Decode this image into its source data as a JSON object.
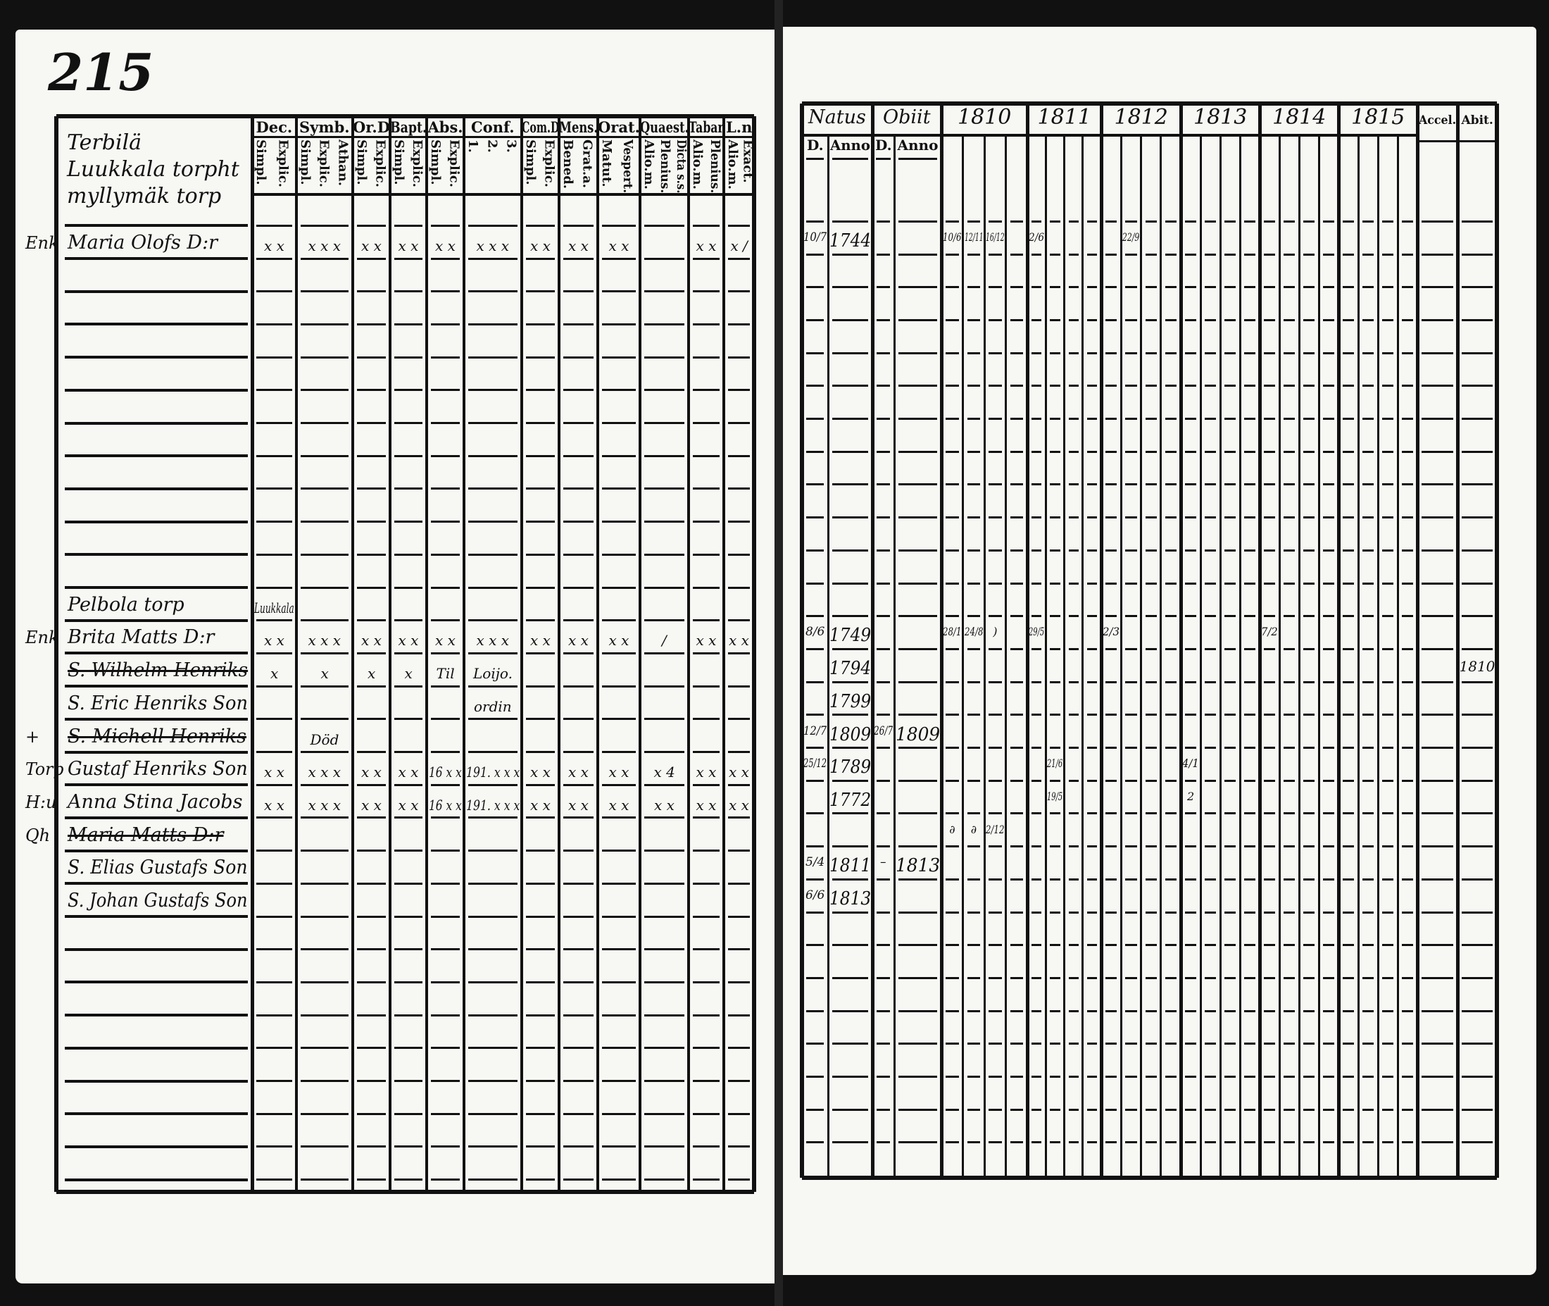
{
  "page_number": "215",
  "left": {
    "name_header": [
      "Terbilä",
      "Luukkala torpht",
      "myllymäk torp"
    ],
    "columns": [
      {
        "label": "Dec.",
        "sub": [
          "Explic.",
          "Simpl."
        ]
      },
      {
        "label": "Symb.",
        "sub": [
          "Athan.",
          "Explic.",
          "Simpl."
        ]
      },
      {
        "label": "Or.D",
        "sub": [
          "Explic.",
          "Simpl."
        ]
      },
      {
        "label": "Bapt.",
        "sub": [
          "Explic.",
          "Simpl."
        ]
      },
      {
        "label": "Abs.",
        "sub": [
          "Explic.",
          "Simpl."
        ]
      },
      {
        "label": "Conf.",
        "sub": [
          "3.",
          "2.",
          "1."
        ]
      },
      {
        "label": "Com.D",
        "sub": [
          "Explic.",
          "Simpl."
        ]
      },
      {
        "label": "Mens.",
        "sub": [
          "Grat.a.",
          "Bened."
        ]
      },
      {
        "label": "Orat.",
        "sub": [
          "Vespert.",
          "Matut."
        ]
      },
      {
        "label": "Quaest.",
        "sub": [
          "Dicta s.s.",
          "Plenius.",
          "Alio.m."
        ]
      },
      {
        "label": "Tabar",
        "sub": [
          "Plenius.",
          "Alio.m."
        ]
      },
      {
        "label": "L.n",
        "sub": [
          "Exact.",
          "Alio.m."
        ]
      }
    ],
    "rows": [
      {
        "prefix": "Enk",
        "name": "Maria Olofs D:r",
        "struck": false,
        "marks": [
          "x x",
          "x x x",
          "x x",
          "x x",
          "x x",
          "x x x",
          "x x",
          "x x",
          "x x",
          "",
          "x x",
          "x /"
        ]
      },
      {
        "prefix": "",
        "name": "Pelbola torp",
        "struck": false,
        "marks": [
          "Luukkala",
          "",
          "",
          "",
          "",
          "",
          "",
          "",
          "",
          "",
          "",
          ""
        ]
      },
      {
        "prefix": "Enk",
        "name": "Brita Matts D:r",
        "struck": false,
        "marks": [
          "x x",
          "x x x",
          "x x",
          "x x",
          "x x",
          "x x x",
          "x x",
          "x x",
          "x x",
          "/",
          "x x",
          "x x"
        ]
      },
      {
        "prefix": "",
        "name": "S. Wilhelm Henriks",
        "struck": true,
        "marks": [
          "x",
          "x",
          "x",
          "x",
          "Til",
          "Loijo.",
          "",
          "",
          "",
          "",
          "",
          ""
        ]
      },
      {
        "prefix": "",
        "name": "S. Eric Henriks Son",
        "struck": false,
        "marks": [
          "",
          "",
          "",
          "",
          "",
          "ordin",
          "",
          "",
          "",
          "",
          "",
          ""
        ]
      },
      {
        "prefix": "+",
        "name": "S. Michell Henriks",
        "struck": true,
        "marks": [
          "",
          "Död",
          "",
          "",
          "",
          "",
          "",
          "",
          "",
          "",
          "",
          ""
        ]
      },
      {
        "prefix": "Torp",
        "name": "Gustaf Henriks Son",
        "struck": false,
        "marks": [
          "x x",
          "x x x",
          "x x",
          "x x",
          "16 x x",
          "191. x x x",
          "x x",
          "x x",
          "x x",
          "x 4",
          "x x",
          "x x"
        ]
      },
      {
        "prefix": "H:u",
        "name": "Anna Stina Jacobs",
        "struck": false,
        "marks": [
          "x x",
          "x x x",
          "x x",
          "x x",
          "16 x x",
          "191. x x x",
          "x x",
          "x x",
          "x x",
          "x x",
          "x x",
          "x x"
        ]
      },
      {
        "prefix": "Qh",
        "name": "Maria Matts D:r",
        "struck": true,
        "marks": [
          "",
          "",
          "",
          "",
          "",
          "",
          "",
          "",
          "",
          "",
          "",
          ""
        ]
      },
      {
        "prefix": "",
        "name": "S. Elias Gustafs Son",
        "struck": false,
        "marks": [
          "",
          "",
          "",
          "",
          "",
          "",
          "",
          "",
          "",
          "",
          "",
          ""
        ]
      },
      {
        "prefix": "",
        "name": "S. Johan Gustafs Son",
        "struck": false,
        "marks": [
          "",
          "",
          "",
          "",
          "",
          "",
          "",
          "",
          "",
          "",
          "",
          ""
        ]
      }
    ]
  },
  "right": {
    "natus": {
      "label": "Natus",
      "sub": [
        "D.",
        "Anno"
      ]
    },
    "obiit": {
      "label": "Obiit",
      "sub": [
        "D.",
        "Anno"
      ]
    },
    "years": [
      "1810",
      "1811",
      "1812",
      "1813",
      "1814",
      "1815"
    ],
    "accel": "Accel.",
    "abiit": "Abit.",
    "rows": [
      {
        "natus_d": "10/7",
        "natus_anno": "1744",
        "obiit_d": "",
        "obiit_anno": "",
        "years": [
          [
            "10/6",
            "12/11",
            "16/12",
            ""
          ],
          [
            "2/6",
            "",
            "",
            ""
          ],
          [
            "",
            "22/9",
            "",
            ""
          ],
          [],
          [],
          []
        ],
        "abiit": ""
      },
      {
        "natus_d": "",
        "natus_anno": "",
        "obiit_d": "",
        "obiit_anno": "",
        "years": [
          [],
          [],
          [],
          [],
          [],
          []
        ],
        "abiit": ""
      },
      {
        "natus_d": "8/6",
        "natus_anno": "1749",
        "obiit_d": "",
        "obiit_anno": "",
        "years": [
          [
            "28/1",
            "24/8",
            ")",
            ""
          ],
          [
            "29/5",
            "",
            "",
            ""
          ],
          [
            "2/3",
            "",
            "",
            ""
          ],
          [],
          [
            "7/2",
            "",
            "",
            ""
          ],
          []
        ],
        "abiit": ""
      },
      {
        "natus_d": "",
        "natus_anno": "1794",
        "obiit_d": "",
        "obiit_anno": "",
        "years": [
          [],
          [],
          [],
          [],
          [],
          []
        ],
        "abiit": "1810"
      },
      {
        "natus_d": "",
        "natus_anno": "1799",
        "obiit_d": "",
        "obiit_anno": "",
        "years": [
          [],
          [],
          [],
          [],
          [],
          []
        ],
        "abiit": ""
      },
      {
        "natus_d": "12/7",
        "natus_anno": "1809",
        "obiit_d": "26/7",
        "obiit_anno": "1809",
        "years": [
          [],
          [],
          [],
          [],
          [],
          []
        ],
        "abiit": ""
      },
      {
        "natus_d": "25/12",
        "natus_anno": "1789",
        "obiit_d": "",
        "obiit_anno": "",
        "years": [
          [],
          [
            "",
            "21/6",
            "",
            ""
          ],
          [],
          [
            "4/1",
            "",
            "",
            ""
          ],
          [],
          []
        ],
        "abiit": ""
      },
      {
        "natus_d": "",
        "natus_anno": "1772",
        "obiit_d": "",
        "obiit_anno": "",
        "years": [
          [],
          [
            "",
            "19/5",
            "",
            ""
          ],
          [],
          [
            "2",
            "",
            "",
            ""
          ],
          [],
          []
        ],
        "abiit": ""
      },
      {
        "natus_d": "",
        "natus_anno": "",
        "obiit_d": "",
        "obiit_anno": "",
        "years": [
          [
            "∂",
            "∂",
            "2/12",
            ""
          ],
          [],
          [],
          [],
          [],
          []
        ],
        "abiit": ""
      },
      {
        "natus_d": "5/4",
        "natus_anno": "1811",
        "obiit_d": "–",
        "obiit_anno": "1813",
        "years": [
          [],
          [],
          [],
          [],
          [],
          []
        ],
        "abiit": ""
      },
      {
        "natus_d": "6/6",
        "natus_anno": "1813",
        "obiit_d": "",
        "obiit_anno": "",
        "years": [
          [],
          [],
          [],
          [],
          [],
          []
        ],
        "abiit": ""
      }
    ]
  }
}
